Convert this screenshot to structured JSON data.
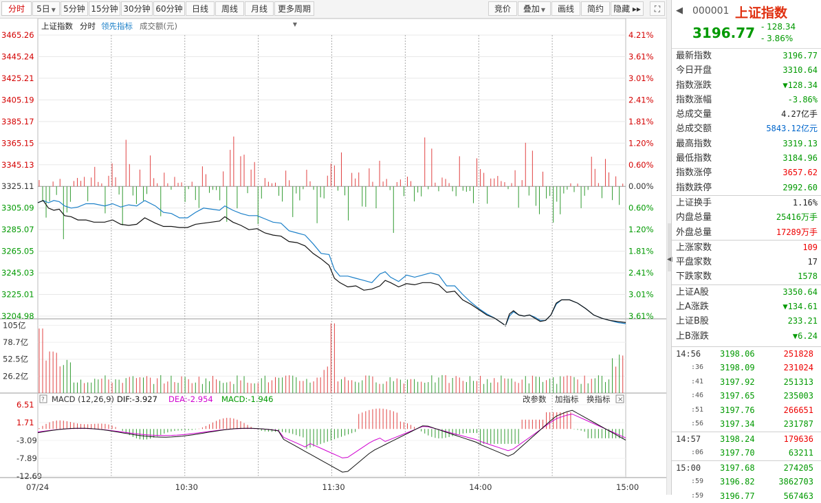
{
  "toolbar": {
    "left": [
      {
        "label": "分时",
        "active": true
      },
      {
        "label": "5日",
        "dropdown": true
      },
      {
        "label": "5分钟"
      },
      {
        "label": "15分钟"
      },
      {
        "label": "30分钟"
      },
      {
        "label": "60分钟"
      },
      {
        "label": "日线"
      },
      {
        "label": "周线"
      },
      {
        "label": "月线"
      },
      {
        "label": "更多周期",
        "dropdown": true
      }
    ],
    "right": [
      {
        "label": "竞价"
      },
      {
        "label": "叠加",
        "dropdown": true
      },
      {
        "label": "画线"
      },
      {
        "label": "简约"
      },
      {
        "label": "隐藏 ▸▸"
      }
    ]
  },
  "chart_data": {
    "type": "line",
    "legend": {
      "items": [
        "上证指数",
        "分时",
        "领先指标",
        "成交额(元)"
      ],
      "colors": [
        "#222222",
        "#222222",
        "#1a7fc8",
        "#666666"
      ]
    },
    "y_left_price_ticks": [
      "3465.26",
      "3445.24",
      "3425.21",
      "3405.19",
      "3385.17",
      "3365.15",
      "3345.13",
      "3325.11",
      "3305.09",
      "3285.07",
      "3265.05",
      "3245.03",
      "3225.01",
      "3204.98"
    ],
    "y_right_pct_ticks": [
      "4.21%",
      "3.61%",
      "3.01%",
      "2.41%",
      "1.81%",
      "1.20%",
      "0.60%",
      "0.00%",
      "0.60%",
      "1.20%",
      "1.81%",
      "2.41%",
      "3.01%",
      "3.61%"
    ],
    "volume_ticks": [
      "105亿",
      "78.7亿",
      "52.5亿",
      "26.2亿"
    ],
    "x_ticks": [
      "07/24",
      "10:30",
      "11:30",
      "14:00",
      "15:00"
    ],
    "prev_close": 3325.11,
    "price_series": [
      [
        0,
        3310
      ],
      [
        4,
        3312
      ],
      [
        8,
        3305
      ],
      [
        12,
        3303
      ],
      [
        16,
        3304
      ],
      [
        20,
        3298
      ],
      [
        25,
        3297
      ],
      [
        30,
        3294
      ],
      [
        36,
        3294
      ],
      [
        42,
        3292
      ],
      [
        50,
        3292
      ],
      [
        56,
        3294
      ],
      [
        62,
        3290
      ],
      [
        68,
        3289
      ],
      [
        74,
        3290
      ],
      [
        80,
        3296
      ],
      [
        88,
        3291
      ],
      [
        94,
        3288
      ],
      [
        100,
        3288
      ],
      [
        106,
        3287
      ],
      [
        112,
        3287
      ],
      [
        118,
        3290
      ],
      [
        124,
        3291
      ],
      [
        130,
        3292
      ],
      [
        136,
        3293
      ],
      [
        140,
        3297
      ],
      [
        146,
        3292
      ],
      [
        152,
        3289
      ],
      [
        158,
        3285
      ],
      [
        164,
        3286
      ],
      [
        170,
        3282
      ],
      [
        176,
        3280
      ],
      [
        182,
        3279
      ],
      [
        188,
        3274
      ],
      [
        194,
        3273
      ],
      [
        200,
        3270
      ],
      [
        206,
        3263
      ],
      [
        212,
        3258
      ],
      [
        218,
        3252
      ],
      [
        222,
        3240
      ],
      [
        226,
        3236
      ],
      [
        232,
        3232
      ],
      [
        238,
        3233
      ],
      [
        244,
        3229
      ],
      [
        250,
        3230
      ],
      [
        256,
        3233
      ],
      [
        260,
        3238
      ],
      [
        264,
        3236
      ],
      [
        270,
        3232
      ],
      [
        276,
        3235
      ],
      [
        282,
        3234
      ],
      [
        288,
        3236
      ],
      [
        294,
        3236
      ],
      [
        300,
        3234
      ],
      [
        306,
        3227
      ],
      [
        312,
        3228
      ],
      [
        318,
        3220
      ],
      [
        324,
        3216
      ],
      [
        330,
        3211
      ],
      [
        336,
        3206
      ],
      [
        342,
        3203
      ],
      [
        348,
        3198
      ],
      [
        350,
        3196
      ],
      [
        353,
        3207
      ],
      [
        356,
        3210
      ],
      [
        360,
        3206
      ],
      [
        364,
        3205
      ],
      [
        368,
        3206
      ],
      [
        372,
        3203
      ],
      [
        376,
        3200
      ],
      [
        380,
        3201
      ],
      [
        384,
        3206
      ],
      [
        388,
        3217
      ],
      [
        392,
        3220
      ],
      [
        398,
        3220
      ],
      [
        404,
        3217
      ],
      [
        410,
        3212
      ],
      [
        416,
        3206
      ],
      [
        422,
        3203
      ],
      [
        428,
        3201
      ],
      [
        434,
        3200
      ],
      [
        440,
        3199
      ]
    ],
    "lead_series": [
      [
        0,
        3310
      ],
      [
        4,
        3312
      ],
      [
        8,
        3310
      ],
      [
        12,
        3312
      ],
      [
        16,
        3311
      ],
      [
        20,
        3307
      ],
      [
        25,
        3305
      ],
      [
        30,
        3306
      ],
      [
        36,
        3309
      ],
      [
        42,
        3309
      ],
      [
        50,
        3307
      ],
      [
        56,
        3309
      ],
      [
        62,
        3306
      ],
      [
        68,
        3308
      ],
      [
        74,
        3307
      ],
      [
        80,
        3312
      ],
      [
        88,
        3307
      ],
      [
        94,
        3301
      ],
      [
        100,
        3300
      ],
      [
        106,
        3296
      ],
      [
        112,
        3296
      ],
      [
        118,
        3301
      ],
      [
        124,
        3305
      ],
      [
        130,
        3304
      ],
      [
        136,
        3303
      ],
      [
        140,
        3307
      ],
      [
        146,
        3303
      ],
      [
        152,
        3300
      ],
      [
        158,
        3298
      ],
      [
        164,
        3298
      ],
      [
        170,
        3295
      ],
      [
        176,
        3292
      ],
      [
        182,
        3291
      ],
      [
        188,
        3284
      ],
      [
        194,
        3282
      ],
      [
        200,
        3280
      ],
      [
        206,
        3272
      ],
      [
        212,
        3263
      ],
      [
        218,
        3262
      ],
      [
        222,
        3248
      ],
      [
        226,
        3242
      ],
      [
        232,
        3242
      ],
      [
        238,
        3240
      ],
      [
        244,
        3238
      ],
      [
        250,
        3236
      ],
      [
        256,
        3244
      ],
      [
        260,
        3246
      ],
      [
        264,
        3241
      ],
      [
        270,
        3237
      ],
      [
        276,
        3243
      ],
      [
        282,
        3241
      ],
      [
        288,
        3243
      ],
      [
        294,
        3245
      ],
      [
        300,
        3243
      ],
      [
        306,
        3233
      ],
      [
        312,
        3233
      ],
      [
        318,
        3225
      ],
      [
        324,
        3218
      ],
      [
        330,
        3212
      ],
      [
        336,
        3207
      ],
      [
        342,
        3203
      ],
      [
        348,
        3198
      ],
      [
        350,
        3196
      ],
      [
        353,
        3205
      ],
      [
        356,
        3209
      ],
      [
        360,
        3206
      ],
      [
        364,
        3205
      ],
      [
        368,
        3206
      ],
      [
        372,
        3204
      ],
      [
        376,
        3201
      ],
      [
        380,
        3201
      ],
      [
        384,
        3206
      ],
      [
        388,
        3216
      ],
      [
        392,
        3220
      ],
      [
        398,
        3220
      ],
      [
        404,
        3217
      ],
      [
        410,
        3212
      ],
      [
        416,
        3206
      ],
      [
        422,
        3203
      ],
      [
        428,
        3201
      ],
      [
        434,
        3199
      ],
      [
        440,
        3198
      ]
    ],
    "macd": {
      "label": "MACD (12,26,9)",
      "dif": "DIF:-3.927",
      "dea": "DEA:-2.954",
      "macd": "MACD:-1.946",
      "ticks": [
        "6.51",
        "1.71",
        "-3.09",
        "-7.89",
        "-12.69"
      ],
      "buttons": [
        "改参数",
        "加指标",
        "换指标"
      ]
    }
  },
  "panel": {
    "code": "000001",
    "name": "上证指数",
    "price": "3196.77",
    "change": "- 128.34",
    "pct": "- 3.86%",
    "group1": [
      {
        "k": "最新指数",
        "v": "3196.77",
        "c": "green"
      },
      {
        "k": "今日开盘",
        "v": "3310.64",
        "c": "green"
      },
      {
        "k": "指数涨跌",
        "v": "▼128.34",
        "c": "green"
      },
      {
        "k": "指数涨幅",
        "v": "-3.86%",
        "c": "green"
      },
      {
        "k": "总成交量",
        "v": "4.27亿手",
        "c": "black"
      },
      {
        "k": "总成交额",
        "v": "5843.12亿元",
        "c": "blue"
      },
      {
        "k": "最高指数",
        "v": "3319.13",
        "c": "green"
      },
      {
        "k": "最低指数",
        "v": "3184.96",
        "c": "green"
      },
      {
        "k": "指数涨停",
        "v": "3657.62",
        "c": "red"
      },
      {
        "k": "指数跌停",
        "v": "2992.60",
        "c": "green"
      }
    ],
    "group2": [
      {
        "k": "上证换手",
        "v": "1.16%",
        "c": "black"
      },
      {
        "k": "内盘总量",
        "v": "25416万手",
        "c": "green"
      },
      {
        "k": "外盘总量",
        "v": "17289万手",
        "c": "red"
      }
    ],
    "group3": [
      {
        "k": "上涨家数",
        "v": "109",
        "c": "red"
      },
      {
        "k": "平盘家数",
        "v": "17",
        "c": "black"
      },
      {
        "k": "下跌家数",
        "v": "1578",
        "c": "green"
      }
    ],
    "group4": [
      {
        "k": "上证A股",
        "v": "3350.64",
        "c": "green"
      },
      {
        "k": "上A涨跌",
        "v": "▼134.61",
        "c": "green"
      },
      {
        "k": "上证B股",
        "v": "233.21",
        "c": "green"
      },
      {
        "k": "上B涨跌",
        "v": "▼6.24",
        "c": "green"
      }
    ],
    "ticks": [
      {
        "t": "14:56",
        "p": "3198.06",
        "v": "251828",
        "vc": "red"
      },
      {
        "t": ":36",
        "p": "3198.09",
        "v": "231024",
        "vc": "red",
        "small": true
      },
      {
        "t": ":41",
        "p": "3197.92",
        "v": "251313",
        "vc": "green",
        "small": true
      },
      {
        "t": ":46",
        "p": "3197.65",
        "v": "235003",
        "vc": "green",
        "small": true
      },
      {
        "t": ":51",
        "p": "3197.76",
        "v": "266651",
        "vc": "red",
        "small": true
      },
      {
        "t": ":56",
        "p": "3197.34",
        "v": "231787",
        "vc": "green",
        "small": true
      },
      {
        "t": "14:57",
        "p": "3198.24",
        "v": "179636",
        "vc": "red",
        "sep": true
      },
      {
        "t": ":06",
        "p": "3197.70",
        "v": "63211",
        "vc": "green",
        "small": true
      },
      {
        "t": "15:00",
        "p": "3197.68",
        "v": "274205",
        "vc": "green",
        "sep": true
      },
      {
        "t": ":59",
        "p": "3196.82",
        "v": "3862703",
        "vc": "green",
        "small": true
      },
      {
        "t": ":59",
        "p": "3196.77",
        "v": "567463",
        "vc": "green",
        "small": true
      }
    ]
  }
}
